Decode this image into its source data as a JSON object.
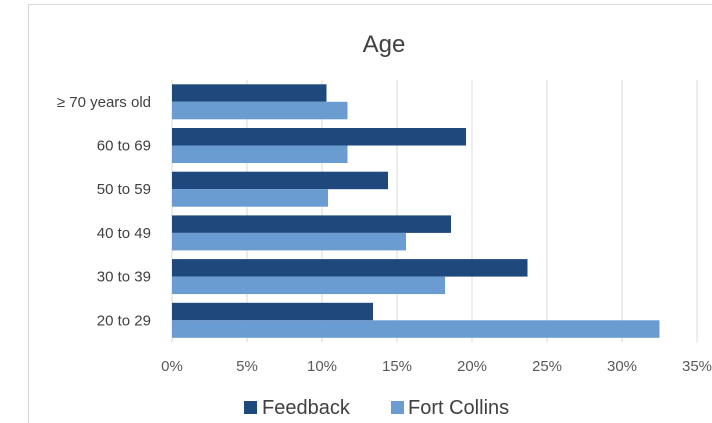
{
  "chart_data": {
    "type": "bar",
    "orientation": "horizontal",
    "title": "Age",
    "categories": [
      "≥ 70 years old",
      "60 to 69",
      "50 to 59",
      "40 to 49",
      "30 to 39",
      "20 to 29"
    ],
    "series": [
      {
        "name": "Feedback",
        "color": "#1f497d",
        "values": [
          10.3,
          19.6,
          14.4,
          18.6,
          23.7,
          13.4
        ]
      },
      {
        "name": "Fort Collins",
        "color": "#6a9bd1",
        "values": [
          11.7,
          11.7,
          10.4,
          15.6,
          18.2,
          32.5
        ]
      }
    ],
    "x_ticks": [
      "0%",
      "5%",
      "10%",
      "15%",
      "20%",
      "25%",
      "30%",
      "35%"
    ],
    "xlim": [
      0,
      35
    ],
    "xlabel": "",
    "ylabel": "",
    "grid": true,
    "legend_position": "bottom"
  }
}
